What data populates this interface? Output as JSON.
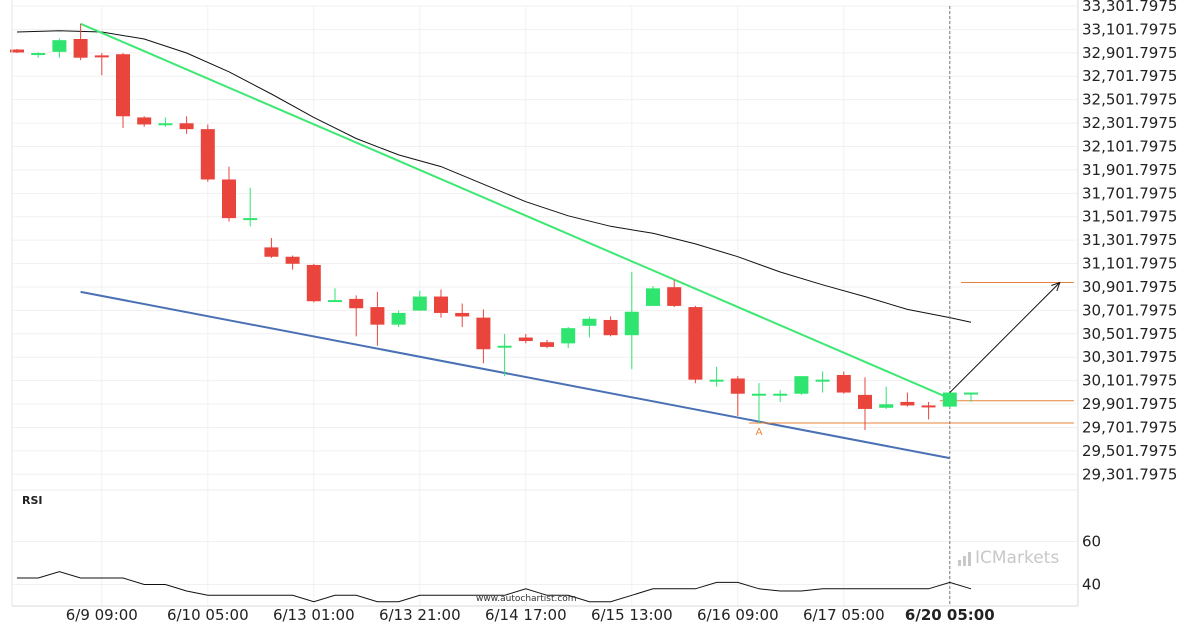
{
  "chart_data": [
    {
      "type": "candlestick",
      "yticks": [
        "33,301.7975",
        "33,101.7975",
        "32,901.7975",
        "32,701.7975",
        "32,501.7975",
        "32,301.7975",
        "32,101.7975",
        "31,901.7975",
        "31,701.7975",
        "31,501.7975",
        "31,301.7975",
        "31,101.7975",
        "30,901.7975",
        "30,701.7975",
        "30,501.7975",
        "30,301.7975",
        "30,101.7975",
        "29,901.7975",
        "29,701.7975",
        "29,501.7975",
        "29,301.7975"
      ],
      "ylim": [
        29201.7975,
        33301.7975
      ],
      "xticks": [
        {
          "label": "6/9 09:00",
          "index": 4
        },
        {
          "label": "6/10 05:00",
          "index": 9
        },
        {
          "label": "6/13 01:00",
          "index": 14
        },
        {
          "label": "6/13 21:00",
          "index": 19
        },
        {
          "label": "6/14 17:00",
          "index": 24
        },
        {
          "label": "6/15 13:00",
          "index": 29
        },
        {
          "label": "6/16 09:00",
          "index": 34
        },
        {
          "label": "6/17 05:00",
          "index": 39
        },
        {
          "label": "6/20 05:00",
          "index": 44,
          "bold": true
        }
      ],
      "candles": [
        {
          "o": 32930,
          "h": 32935,
          "c": 32905,
          "l": 32900
        },
        {
          "o": 32900,
          "h": 32905,
          "c": 32900,
          "l": 32860
        },
        {
          "o": 32910,
          "h": 33025,
          "c": 33010,
          "l": 32860
        },
        {
          "o": 33020,
          "h": 33150,
          "c": 32860,
          "l": 32840
        },
        {
          "o": 32880,
          "h": 32900,
          "c": 32870,
          "l": 32710
        },
        {
          "o": 32890,
          "h": 32900,
          "c": 32360,
          "l": 32260
        },
        {
          "o": 32350,
          "h": 32360,
          "c": 32290,
          "l": 32270
        },
        {
          "o": 32300,
          "h": 32350,
          "c": 32300,
          "l": 32270
        },
        {
          "o": 32300,
          "h": 32360,
          "c": 32250,
          "l": 32210
        },
        {
          "o": 32250,
          "h": 32290,
          "c": 31820,
          "l": 31800
        },
        {
          "o": 31820,
          "h": 31930,
          "c": 31490,
          "l": 31460
        },
        {
          "o": 31490,
          "h": 31750,
          "c": 31490,
          "l": 31420
        },
        {
          "o": 31240,
          "h": 31320,
          "c": 31160,
          "l": 31150
        },
        {
          "o": 31160,
          "h": 31170,
          "c": 31100,
          "l": 31050
        },
        {
          "o": 31090,
          "h": 31100,
          "c": 30780,
          "l": 30770
        },
        {
          "o": 30780,
          "h": 30890,
          "c": 30790,
          "l": 30780
        },
        {
          "o": 30800,
          "h": 30830,
          "c": 30720,
          "l": 30480
        },
        {
          "o": 30730,
          "h": 30860,
          "c": 30580,
          "l": 30400
        },
        {
          "o": 30580,
          "h": 30700,
          "c": 30680,
          "l": 30560
        },
        {
          "o": 30700,
          "h": 30870,
          "c": 30820,
          "l": 30700
        },
        {
          "o": 30820,
          "h": 30880,
          "c": 30680,
          "l": 30640
        },
        {
          "o": 30680,
          "h": 30760,
          "c": 30650,
          "l": 30560
        },
        {
          "o": 30640,
          "h": 30710,
          "c": 30370,
          "l": 30250
        },
        {
          "o": 30390,
          "h": 30500,
          "c": 30400,
          "l": 30140
        },
        {
          "o": 30470,
          "h": 30500,
          "c": 30440,
          "l": 30420
        },
        {
          "o": 30430,
          "h": 30450,
          "c": 30390,
          "l": 30380
        },
        {
          "o": 30420,
          "h": 30560,
          "c": 30550,
          "l": 30380
        },
        {
          "o": 30570,
          "h": 30650,
          "c": 30630,
          "l": 30470
        },
        {
          "o": 30620,
          "h": 30650,
          "c": 30490,
          "l": 30480
        },
        {
          "o": 30490,
          "h": 31030,
          "c": 30690,
          "l": 30200
        },
        {
          "o": 30740,
          "h": 30910,
          "c": 30890,
          "l": 30740
        },
        {
          "o": 30900,
          "h": 30960,
          "c": 30740,
          "l": 30730
        },
        {
          "o": 30730,
          "h": 30740,
          "c": 30110,
          "l": 30080
        },
        {
          "o": 30110,
          "h": 30220,
          "c": 30110,
          "l": 30050
        },
        {
          "o": 30120,
          "h": 30140,
          "c": 29990,
          "l": 29800
        },
        {
          "o": 29990,
          "h": 30080,
          "c": 29990,
          "l": 29740
        },
        {
          "o": 29990,
          "h": 30020,
          "c": 29990,
          "l": 29920
        },
        {
          "o": 29990,
          "h": 30140,
          "c": 30140,
          "l": 29980
        },
        {
          "o": 30110,
          "h": 30180,
          "c": 30110,
          "l": 30000
        },
        {
          "o": 30150,
          "h": 30180,
          "c": 30000,
          "l": 29990
        },
        {
          "o": 29980,
          "h": 30130,
          "c": 29860,
          "l": 29680
        },
        {
          "o": 29870,
          "h": 30050,
          "c": 29900,
          "l": 29860
        },
        {
          "o": 29920,
          "h": 30000,
          "c": 29890,
          "l": 29880
        },
        {
          "o": 29890,
          "h": 29920,
          "c": 29880,
          "l": 29770
        },
        {
          "o": 29880,
          "h": 30000,
          "c": 30000,
          "l": 29870
        },
        {
          "o": 30000,
          "h": 30000,
          "c": 30000,
          "l": 29920
        }
      ],
      "moving_average": [
        {
          "i": 0,
          "v": 33080
        },
        {
          "i": 2,
          "v": 33090
        },
        {
          "i": 4,
          "v": 33080
        },
        {
          "i": 6,
          "v": 33020
        },
        {
          "i": 8,
          "v": 32900
        },
        {
          "i": 10,
          "v": 32740
        },
        {
          "i": 12,
          "v": 32550
        },
        {
          "i": 14,
          "v": 32350
        },
        {
          "i": 16,
          "v": 32170
        },
        {
          "i": 18,
          "v": 32030
        },
        {
          "i": 20,
          "v": 31930
        },
        {
          "i": 22,
          "v": 31780
        },
        {
          "i": 24,
          "v": 31630
        },
        {
          "i": 26,
          "v": 31510
        },
        {
          "i": 28,
          "v": 31420
        },
        {
          "i": 30,
          "v": 31360
        },
        {
          "i": 32,
          "v": 31270
        },
        {
          "i": 34,
          "v": 31160
        },
        {
          "i": 36,
          "v": 31030
        },
        {
          "i": 38,
          "v": 30920
        },
        {
          "i": 40,
          "v": 30820
        },
        {
          "i": 42,
          "v": 30710
        },
        {
          "i": 44,
          "v": 30640
        },
        {
          "i": 45,
          "v": 30600
        }
      ],
      "resistance_line": {
        "from": {
          "i": 3,
          "v": 33150
        },
        "to": {
          "i": 44,
          "v": 29950
        }
      },
      "support_line": {
        "from": {
          "i": 3,
          "v": 30860
        },
        "to": {
          "i": 44,
          "v": 29440
        }
      },
      "levels": [
        {
          "v": 29930,
          "from": 44,
          "to": 49
        },
        {
          "v": 29740,
          "from": 35,
          "to": 49
        },
        {
          "v": 30940,
          "from": 45,
          "to": 49
        }
      ],
      "arrow": {
        "from": {
          "i": 44,
          "v": 30000
        },
        "to": {
          "i": 49,
          "v": 30940
        }
      },
      "marker": {
        "text": "A",
        "i": 35,
        "v": 29730
      },
      "vline_index": 44,
      "colors": {
        "up": "#2fe46f",
        "down": "#e9453d",
        "resistance": "#3de873",
        "support": "#4a71b3",
        "ma": "#111111",
        "level": "#e8833a",
        "arrow": "#111111"
      }
    },
    {
      "type": "line",
      "title": "RSI",
      "yticks": [
        "60",
        "40"
      ],
      "ylim": [
        30,
        70
      ],
      "values": [
        43,
        43,
        46,
        43,
        43,
        43,
        40,
        40,
        37,
        35,
        35,
        35,
        35,
        35,
        32,
        35,
        35,
        32,
        32,
        35,
        35,
        35,
        35,
        35,
        38,
        35,
        35,
        32,
        32,
        35,
        38,
        38,
        38,
        41,
        41,
        38,
        37,
        37,
        38,
        38,
        38,
        38,
        38,
        38,
        41,
        38
      ]
    }
  ],
  "watermark": "www.autochartist.com",
  "brand": {
    "prefix": "IC",
    "suffix": "Markets"
  }
}
